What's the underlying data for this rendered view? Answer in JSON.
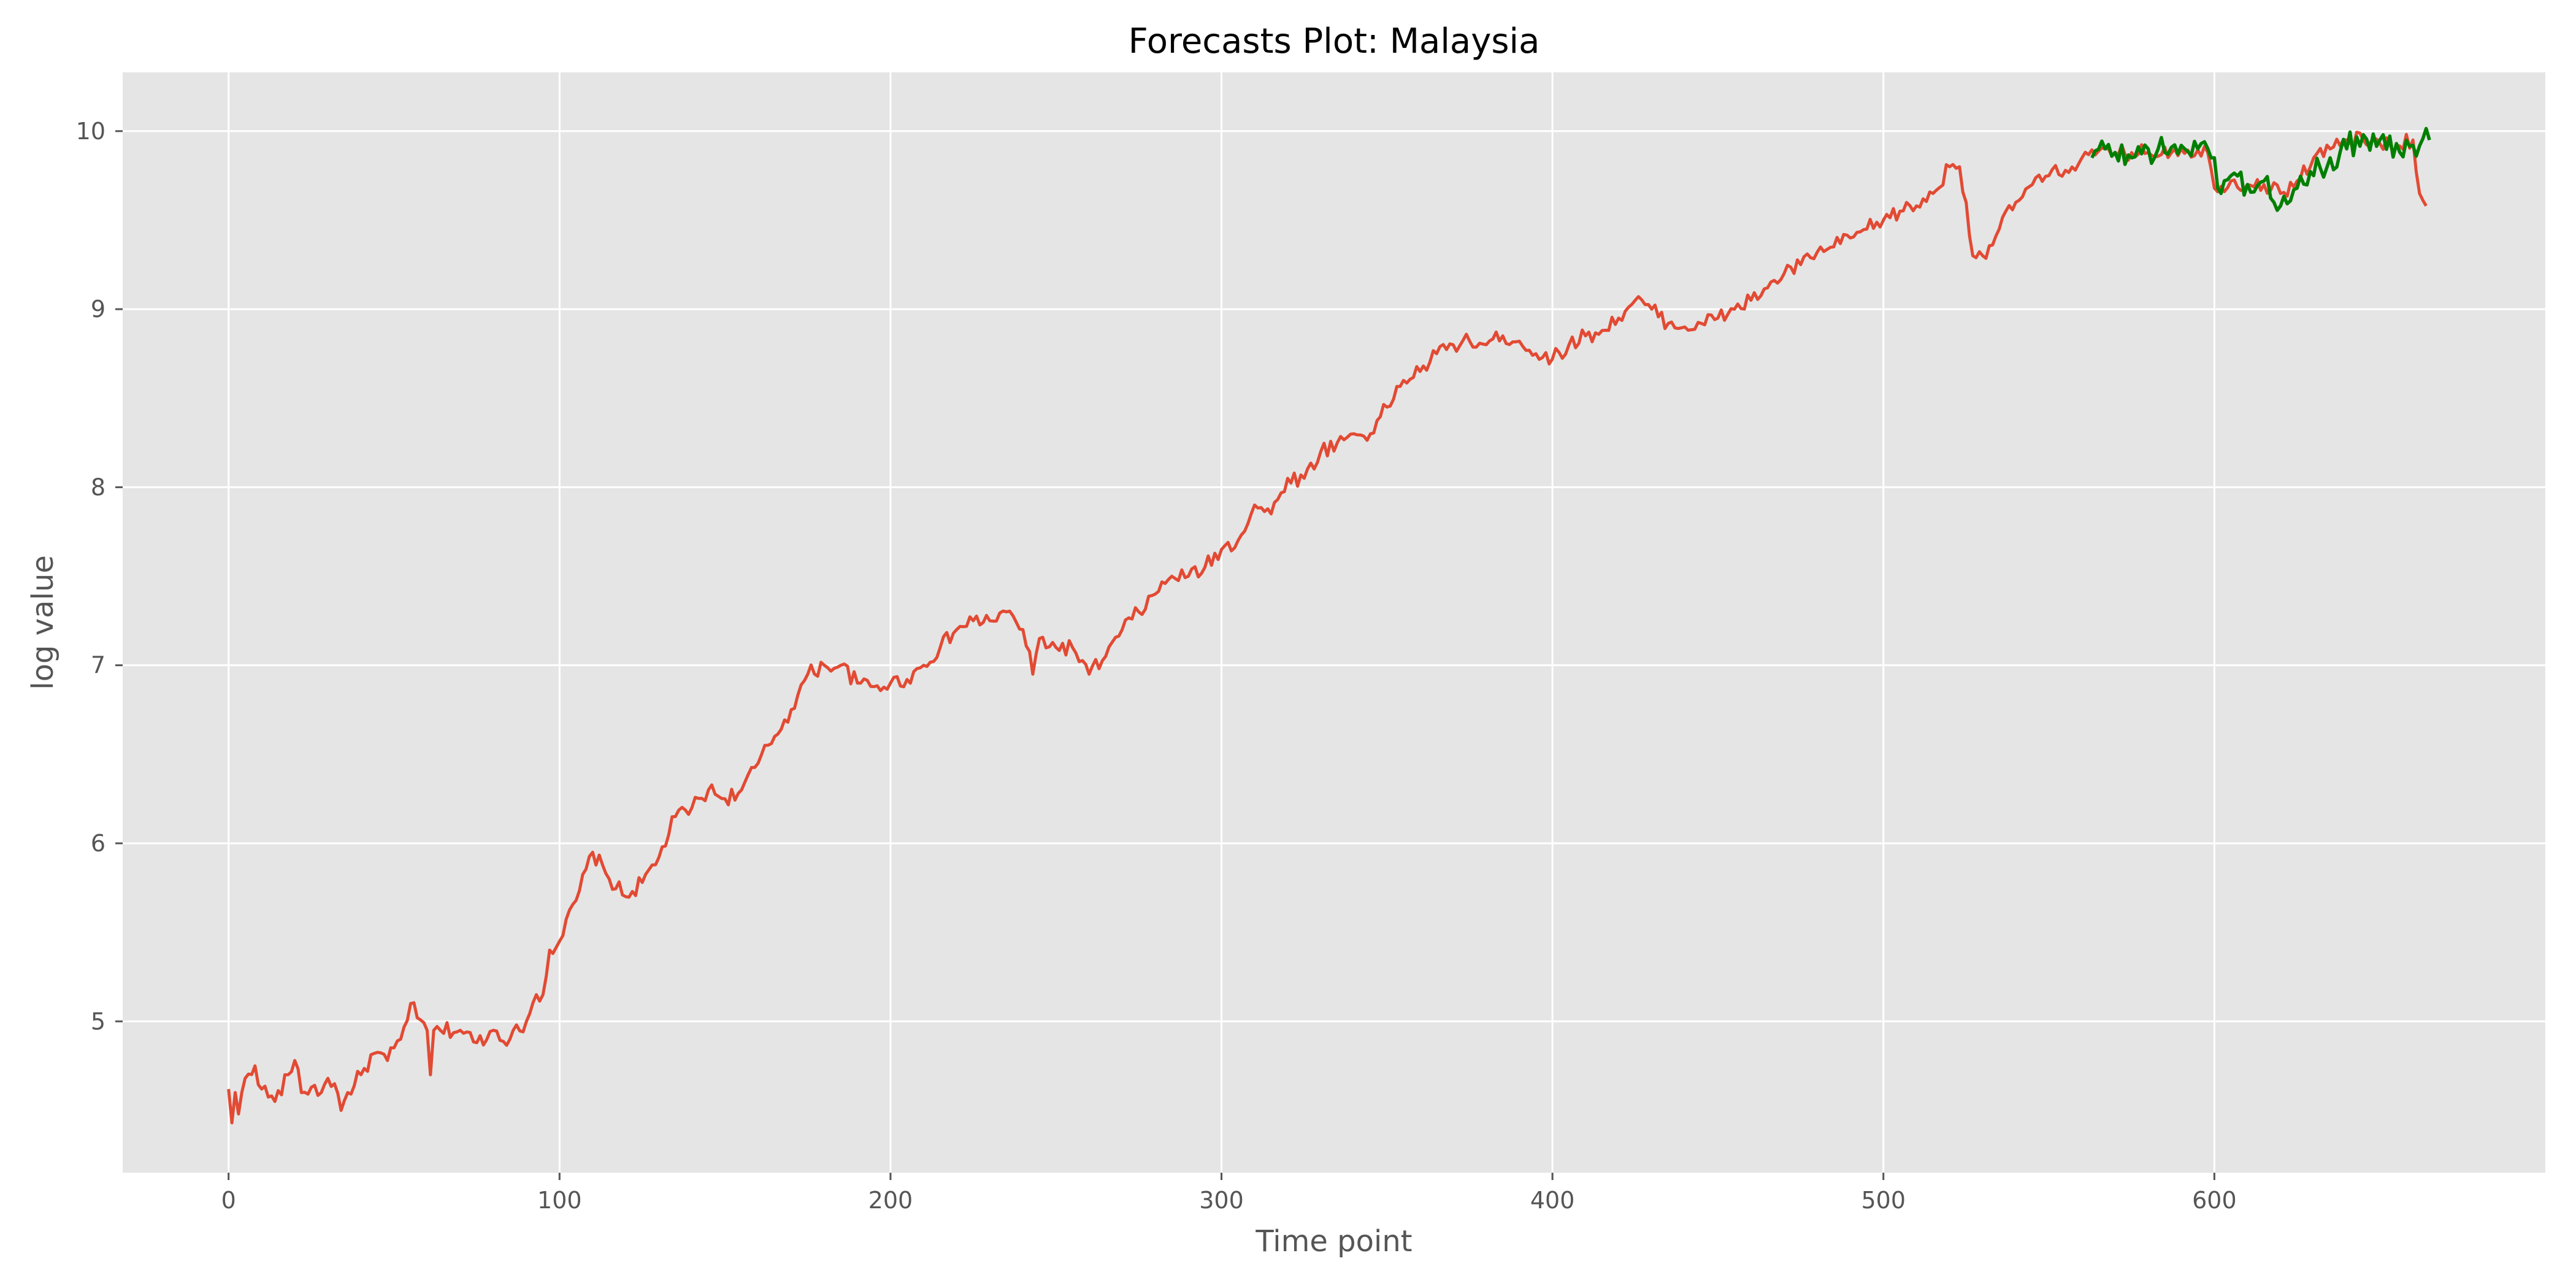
{
  "chart_data": {
    "type": "line",
    "title": "Forecasts Plot: Malaysia",
    "xlabel": "Time point",
    "ylabel": "log value",
    "xlim": [
      -32,
      700
    ],
    "ylim": [
      4.15,
      10.33
    ],
    "x_ticks": [
      0,
      100,
      200,
      300,
      400,
      500,
      600
    ],
    "y_ticks": [
      5,
      6,
      7,
      8,
      9,
      10
    ],
    "grid": true,
    "legend": "none",
    "colors": {
      "background": "#e5e5e5",
      "grid": "#ffffff",
      "actual": "#e24a33",
      "forecast": "#007f00"
    },
    "series": [
      {
        "color": "#e24a33",
        "anchors": {
          "x": [
            0,
            1,
            2,
            3,
            5,
            8,
            10,
            14,
            18,
            20,
            22,
            25,
            28,
            30,
            32,
            34,
            36,
            40,
            44,
            48,
            52,
            55,
            57,
            60,
            61,
            62,
            64,
            70,
            75,
            80,
            85,
            90,
            93,
            95,
            97,
            100,
            105,
            110,
            115,
            120,
            125,
            130,
            135,
            140,
            145,
            150,
            155,
            160,
            165,
            170,
            175,
            180,
            185,
            190,
            195,
            200,
            205,
            210,
            215,
            220,
            225,
            230,
            235,
            240,
            243,
            245,
            250,
            255,
            260,
            265,
            270,
            275,
            280,
            285,
            290,
            295,
            300,
            305,
            310,
            315,
            320,
            325,
            330,
            335,
            340,
            345,
            350,
            355,
            360,
            365,
            370,
            375,
            380,
            385,
            390,
            395,
            400,
            405,
            410,
            415,
            420,
            425,
            430,
            435,
            440,
            445,
            450,
            455,
            460,
            465,
            470,
            475,
            480,
            485,
            490,
            495,
            500,
            505,
            510,
            515,
            520,
            523,
            525,
            527,
            530,
            535,
            540,
            545,
            550,
            555,
            560,
            570,
            580,
            590,
            598,
            600,
            605,
            610,
            615,
            620,
            625,
            630,
            635,
            640,
            645,
            650,
            655,
            660,
            662,
            664
          ],
          "y": [
            4.62,
            4.43,
            4.6,
            4.48,
            4.68,
            4.75,
            4.62,
            4.55,
            4.7,
            4.78,
            4.6,
            4.63,
            4.6,
            4.68,
            4.65,
            4.5,
            4.6,
            4.7,
            4.82,
            4.78,
            4.9,
            5.1,
            5.02,
            4.95,
            4.7,
            4.95,
            4.95,
            4.95,
            4.88,
            4.95,
            4.9,
            5.0,
            5.15,
            5.15,
            5.4,
            5.45,
            5.68,
            5.95,
            5.8,
            5.7,
            5.78,
            5.92,
            6.15,
            6.2,
            6.3,
            6.25,
            6.3,
            6.45,
            6.6,
            6.75,
            6.95,
            7.0,
            7.0,
            6.9,
            6.88,
            6.9,
            6.92,
            7.0,
            7.1,
            7.2,
            7.25,
            7.25,
            7.3,
            7.2,
            6.95,
            7.15,
            7.1,
            7.1,
            6.95,
            7.05,
            7.2,
            7.3,
            7.4,
            7.5,
            7.5,
            7.55,
            7.65,
            7.7,
            7.9,
            7.85,
            8.05,
            8.05,
            8.2,
            8.25,
            8.3,
            8.3,
            8.45,
            8.6,
            8.65,
            8.75,
            8.8,
            8.82,
            8.8,
            8.85,
            8.82,
            8.75,
            8.72,
            8.8,
            8.85,
            8.88,
            8.95,
            9.05,
            9.0,
            8.92,
            8.9,
            8.92,
            8.95,
            9.0,
            9.05,
            9.12,
            9.2,
            9.25,
            9.32,
            9.35,
            9.4,
            9.45,
            9.5,
            9.55,
            9.58,
            9.65,
            9.8,
            9.8,
            9.6,
            9.3,
            9.3,
            9.45,
            9.6,
            9.7,
            9.75,
            9.78,
            9.85,
            9.88,
            9.88,
            9.9,
            9.88,
            9.68,
            9.72,
            9.7,
            9.7,
            9.65,
            9.72,
            9.85,
            9.9,
            9.95,
            9.95,
            9.93,
            9.92,
            9.95,
            9.65,
            9.58
          ]
        }
      },
      {
        "color": "#007f00",
        "anchors": {
          "x": [
            563,
            567,
            570,
            575,
            580,
            585,
            590,
            595,
            600,
            602,
            605,
            610,
            615,
            618,
            620,
            625,
            630,
            635,
            640,
            645,
            650,
            655,
            660,
            665
          ],
          "y": [
            9.85,
            9.9,
            9.88,
            9.85,
            9.9,
            9.88,
            9.92,
            9.9,
            9.85,
            9.65,
            9.75,
            9.7,
            9.72,
            9.6,
            9.58,
            9.68,
            9.75,
            9.85,
            9.9,
            9.98,
            9.95,
            9.93,
            9.92,
            9.95
          ]
        }
      }
    ]
  }
}
